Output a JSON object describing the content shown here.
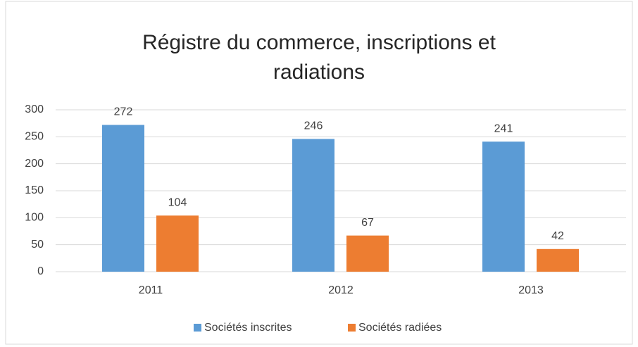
{
  "chart_data": {
    "type": "bar",
    "title": "Régistre du commerce, inscriptions et radiations",
    "categories": [
      "2011",
      "2012",
      "2013"
    ],
    "series": [
      {
        "name": "Sociétés inscrites",
        "color": "#5b9bd5",
        "values": [
          272,
          246,
          241
        ]
      },
      {
        "name": "Sociétés radiées",
        "color": "#ed7d31",
        "values": [
          104,
          67,
          42
        ]
      }
    ],
    "ylim": [
      0,
      300
    ],
    "yticks": [
      0,
      50,
      100,
      150,
      200,
      250,
      300
    ],
    "grid": true,
    "legend": "bottom"
  }
}
